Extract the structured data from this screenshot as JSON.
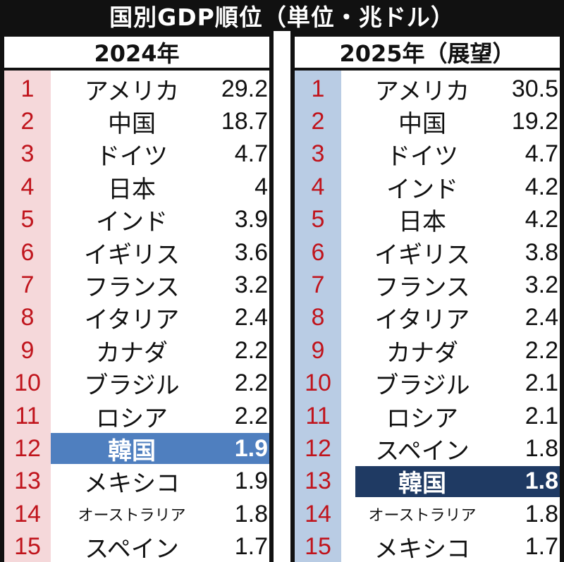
{
  "title": "国別GDP順位（単位・兆ドル）",
  "left": {
    "header": "2024年",
    "rows": [
      {
        "rank": "1",
        "name": "アメリカ",
        "value": "29.2"
      },
      {
        "rank": "2",
        "name": "中国",
        "value": "18.7"
      },
      {
        "rank": "3",
        "name": "ドイツ",
        "value": "4.7"
      },
      {
        "rank": "4",
        "name": "日本",
        "value": "4"
      },
      {
        "rank": "5",
        "name": "インド",
        "value": "3.9"
      },
      {
        "rank": "6",
        "name": "イギリス",
        "value": "3.6"
      },
      {
        "rank": "7",
        "name": "フランス",
        "value": "3.2"
      },
      {
        "rank": "8",
        "name": "イタリア",
        "value": "2.4"
      },
      {
        "rank": "9",
        "name": "カナダ",
        "value": "2.2"
      },
      {
        "rank": "10",
        "name": "ブラジル",
        "value": "2.2"
      },
      {
        "rank": "11",
        "name": "ロシア",
        "value": "2.2"
      },
      {
        "rank": "12",
        "name": "韓国",
        "value": "1.9",
        "highlight": true
      },
      {
        "rank": "13",
        "name": "メキシコ",
        "value": "1.9"
      },
      {
        "rank": "14",
        "name": "オーストラリア",
        "value": "1.8"
      },
      {
        "rank": "15",
        "name": "スペイン",
        "value": "1.7"
      }
    ]
  },
  "right": {
    "header": "2025年（展望）",
    "rows": [
      {
        "rank": "1",
        "name": "アメリカ",
        "value": "30.5"
      },
      {
        "rank": "2",
        "name": "中国",
        "value": "19.2"
      },
      {
        "rank": "3",
        "name": "ドイツ",
        "value": "4.7"
      },
      {
        "rank": "4",
        "name": "インド",
        "value": "4.2"
      },
      {
        "rank": "5",
        "name": "日本",
        "value": "4.2"
      },
      {
        "rank": "6",
        "name": "イギリス",
        "value": "3.8"
      },
      {
        "rank": "7",
        "name": "フランス",
        "value": "3.2"
      },
      {
        "rank": "8",
        "name": "イタリア",
        "value": "2.4"
      },
      {
        "rank": "9",
        "name": "カナダ",
        "value": "2.2"
      },
      {
        "rank": "10",
        "name": "ブラジル",
        "value": "2.1"
      },
      {
        "rank": "11",
        "name": "ロシア",
        "value": "2.1"
      },
      {
        "rank": "12",
        "name": "スペイン",
        "value": "1.8"
      },
      {
        "rank": "13",
        "name": "韓国",
        "value": "1.8",
        "highlight": true
      },
      {
        "rank": "14",
        "name": "オーストラリア",
        "value": "1.8"
      },
      {
        "rank": "15",
        "name": "メキシコ",
        "value": "1.7"
      }
    ]
  },
  "colors": {
    "rank_text": "#c0141c",
    "left_strip": "#f5d8da",
    "right_strip": "#b9cce4",
    "left_highlight": "#4f7fbf",
    "right_highlight": "#1f3a63"
  }
}
